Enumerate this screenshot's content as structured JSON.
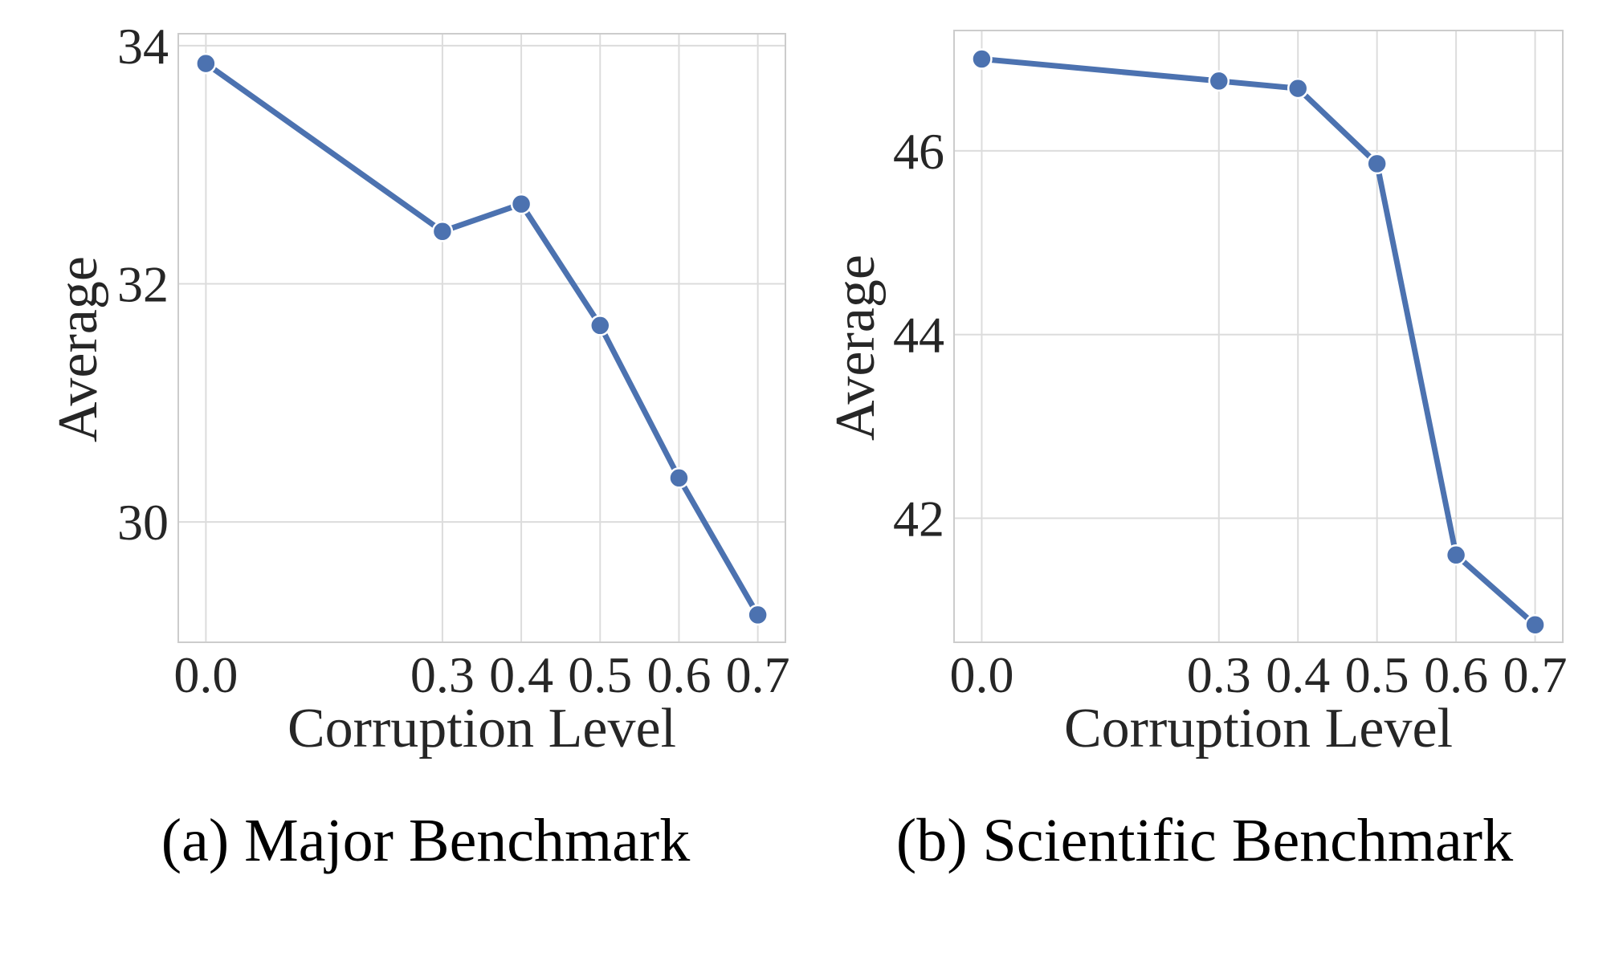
{
  "line_color": "#4c72b0",
  "grid_color": "#dcdcdc",
  "chart_data": [
    {
      "type": "line",
      "caption": "(a) Major Benchmark",
      "xlabel": "Corruption Level",
      "ylabel": "Average",
      "x": [
        0.0,
        0.3,
        0.4,
        0.5,
        0.6,
        0.7
      ],
      "x_tick_labels": [
        "0.0",
        "0.3",
        "0.4",
        "0.5",
        "0.6",
        "0.7"
      ],
      "y_ticks": [
        30,
        32,
        34
      ],
      "y_tick_labels": [
        "30",
        "32",
        "34"
      ],
      "xlim": [
        -0.035,
        0.735
      ],
      "ylim": [
        28.99,
        34.1
      ],
      "grid": true,
      "series": [
        {
          "values": [
            33.85,
            32.44,
            32.67,
            31.65,
            30.37,
            29.22
          ]
        }
      ]
    },
    {
      "type": "line",
      "caption": "(b) Scientific Benchmark",
      "xlabel": "Corruption Level",
      "ylabel": "Average",
      "x": [
        0.0,
        0.3,
        0.4,
        0.5,
        0.6,
        0.7
      ],
      "x_tick_labels": [
        "0.0",
        "0.3",
        "0.4",
        "0.5",
        "0.6",
        "0.7"
      ],
      "y_ticks": [
        42,
        44,
        46
      ],
      "y_tick_labels": [
        "42",
        "44",
        "46"
      ],
      "xlim": [
        -0.035,
        0.735
      ],
      "ylim": [
        40.65,
        47.31
      ],
      "grid": true,
      "series": [
        {
          "values": [
            47.0,
            46.76,
            46.68,
            45.86,
            41.6,
            40.84
          ]
        }
      ]
    }
  ]
}
